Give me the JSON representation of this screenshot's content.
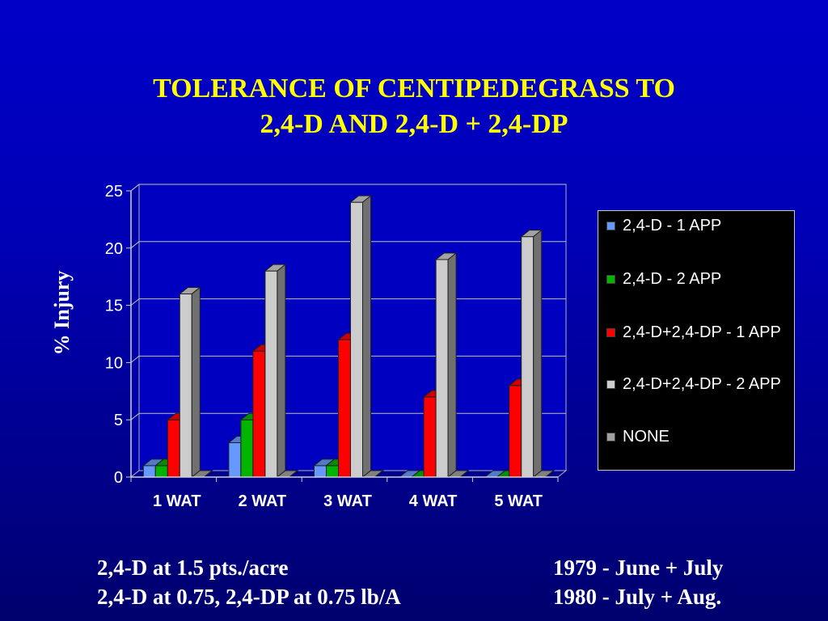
{
  "title": {
    "line1": "TOLERANCE OF CENTIPEDEGRASS TO",
    "line2": "2,4-D AND 2,4-D + 2,4-DP"
  },
  "notes": {
    "left1": "2,4-D at 1.5 pts./acre",
    "left2": "2,4-D at 0.75, 2,4-DP at 0.75 lb/A",
    "right1": "1979 - June + July",
    "right2": "1980 - July + Aug."
  },
  "chart_data": {
    "type": "bar",
    "categories": [
      "1 WAT",
      "2 WAT",
      "3 WAT",
      "4 WAT",
      "5 WAT"
    ],
    "series": [
      {
        "name": "2,4-D - 1 APP",
        "color": "#6699ff",
        "values": [
          1,
          3,
          1,
          0,
          0
        ]
      },
      {
        "name": "2,4-D - 2 APP",
        "color": "#00b400",
        "values": [
          1,
          5,
          1,
          0,
          0
        ]
      },
      {
        "name": "2,4-D+2,4-DP - 1 APP",
        "color": "#ff0000",
        "values": [
          5,
          11,
          12,
          7,
          8
        ]
      },
      {
        "name": "2,4-D+2,4-DP - 2 APP",
        "color": "#cccccc",
        "values": [
          16,
          18,
          24,
          19,
          21
        ]
      },
      {
        "name": "NONE",
        "color": "#a0a0a0",
        "values": [
          0,
          0,
          0,
          0,
          0
        ]
      }
    ],
    "title": "",
    "xlabel": "",
    "ylabel": "% Injury",
    "ylim": [
      0,
      25
    ],
    "yticks": [
      "0",
      "5",
      "10",
      "15",
      "20",
      "25"
    ],
    "grid": true,
    "legend": "right"
  }
}
